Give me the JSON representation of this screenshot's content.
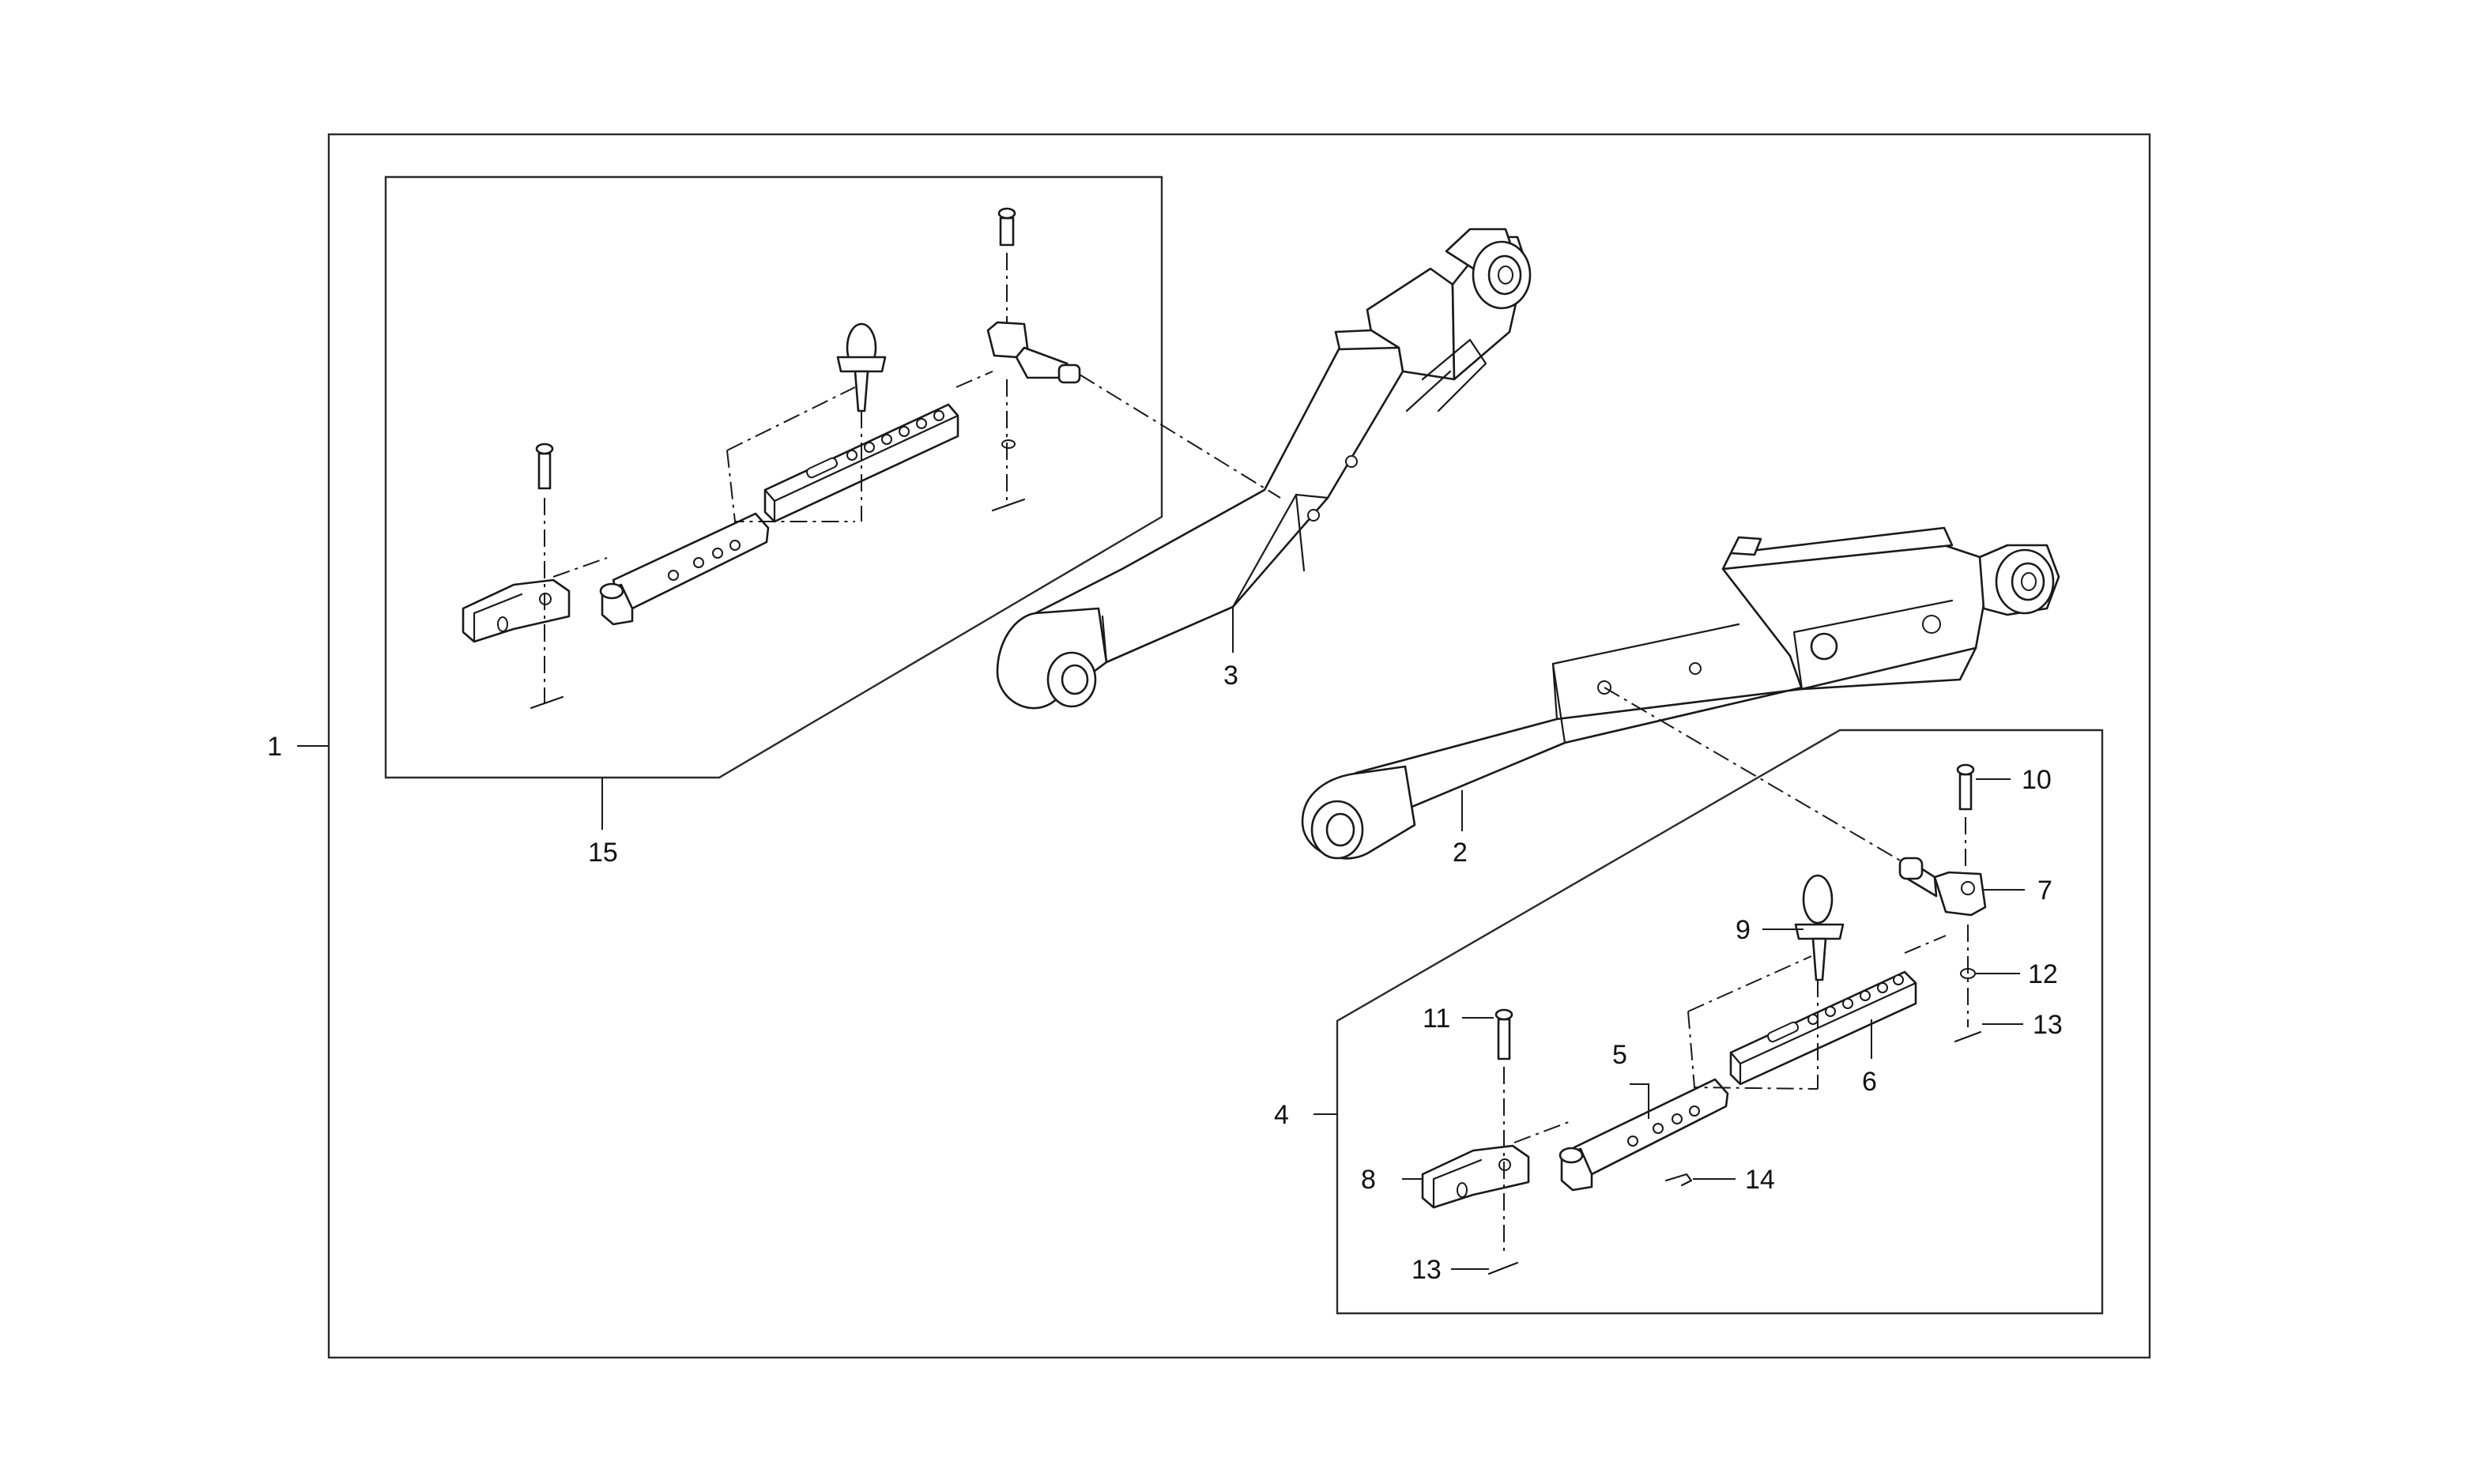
{
  "callouts": {
    "c1": "1",
    "c2": "2",
    "c3": "3",
    "c4": "4",
    "c5": "5",
    "c6": "6",
    "c7": "7",
    "c8": "8",
    "c9": "9",
    "c10": "10",
    "c11": "11",
    "c12": "12",
    "c13a": "13",
    "c13b": "13",
    "c14": "14",
    "c15": "15"
  }
}
